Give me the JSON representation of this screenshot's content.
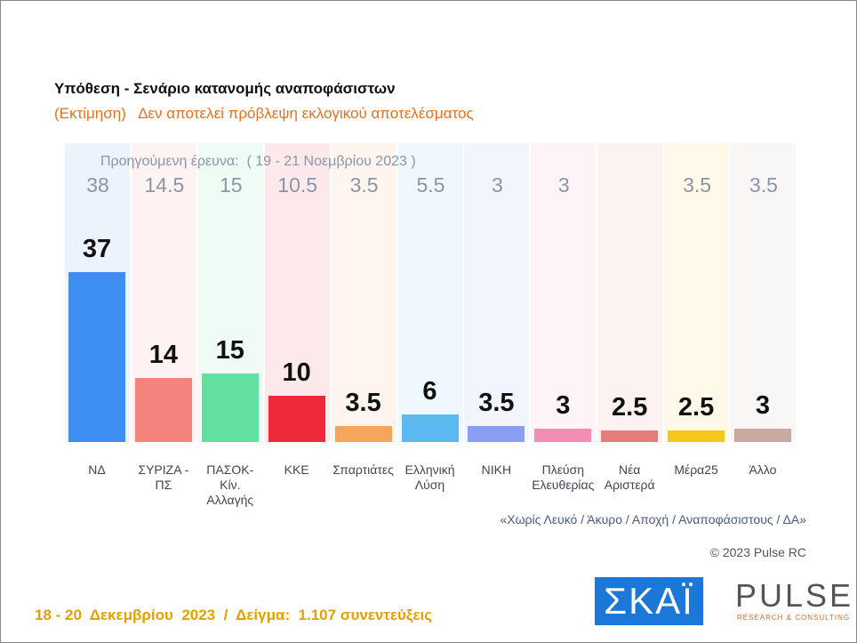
{
  "chart_data": {
    "type": "bar",
    "title": "Υπόθεση - Σενάριο κατανομής αναποφάσιστων",
    "subtitle": "(Εκτίμηση)   Δεν αποτελεί πρόβλεψη εκλογικού αποτελέσματος",
    "previous_label": "Προηγούμενη έρευνα:  ( 19 - 21 Νοεμβρίου 2023 )",
    "categories": [
      "ΝΔ",
      "ΣΥΡΙΖΑ - ΠΣ",
      "ΠΑΣΟΚ-Κίν. Αλλαγής",
      "ΚΚΕ",
      "Σπαρτιάτες",
      "Ελληνική Λύση",
      "ΝΙΚΗ",
      "Πλεύση Ελευθερίας",
      "Νέα Αριστερά",
      "Μέρα25",
      "Άλλο"
    ],
    "values": [
      37,
      14,
      15,
      10,
      3.5,
      6,
      3.5,
      3,
      2.5,
      2.5,
      3
    ],
    "previous_values": [
      38,
      14.5,
      15,
      10.5,
      3.5,
      5.5,
      3,
      3,
      null,
      3.5,
      3.5
    ],
    "colors": [
      "#3d8ef0",
      "#f4837b",
      "#62e0a2",
      "#ee2a3a",
      "#f5a65a",
      "#5cb8f0",
      "#8a9ef2",
      "#f28db3",
      "#e47c7c",
      "#f5c91c",
      "#c8aaa2"
    ],
    "note": "«Χωρίς Λευκό / Άκυρο / Αποχή / Αναποφάσιστους / ΔΑ»",
    "copyright": "© 2023 Pulse RC",
    "footer": "18 - 20  Δεκεμβρίου  2023  /  Δείγμα:  1.107 συνεντεύξεις"
  },
  "logos": {
    "skai": "ΣΚΑΪ",
    "pulse": "PULSE",
    "pulse_sub": "RESEARCH & CONSULTING"
  }
}
